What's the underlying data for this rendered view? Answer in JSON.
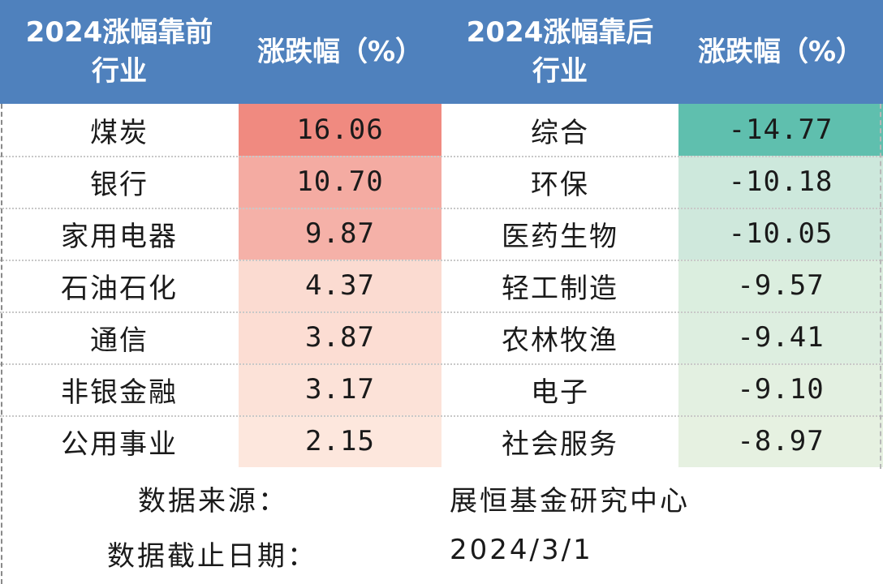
{
  "header": {
    "col1_line1": "2024涨幅靠前",
    "col1_line2": "行业",
    "col2": "涨跌幅（%）",
    "col3_line1": "2024涨幅靠后",
    "col3_line2": "行业",
    "col4": "涨跌幅（%）"
  },
  "rows": [
    {
      "top_industry": "煤炭",
      "top_change": "16.06",
      "bottom_industry": "综合",
      "bottom_change": "-14.77"
    },
    {
      "top_industry": "银行",
      "top_change": "10.70",
      "bottom_industry": "环保",
      "bottom_change": "-10.18"
    },
    {
      "top_industry": "家用电器",
      "top_change": "9.87",
      "bottom_industry": "医药生物",
      "bottom_change": "-10.05"
    },
    {
      "top_industry": "石油石化",
      "top_change": "4.37",
      "bottom_industry": "轻工制造",
      "bottom_change": "-9.57"
    },
    {
      "top_industry": "通信",
      "top_change": "3.87",
      "bottom_industry": "农林牧渔",
      "bottom_change": "-9.41"
    },
    {
      "top_industry": "非银金融",
      "top_change": "3.17",
      "bottom_industry": "电子",
      "bottom_change": "-9.10"
    },
    {
      "top_industry": "公用事业",
      "top_change": "2.15",
      "bottom_industry": "社会服务",
      "bottom_change": "-8.97"
    }
  ],
  "colors": {
    "header_bg": "#4f81bd",
    "positive_scale": [
      "#f08a80",
      "#f4aba2",
      "#f5b1a8",
      "#fbdbd1",
      "#fcddd3",
      "#fce2d8",
      "#fde7dd"
    ],
    "negative_scale": [
      "#5fbfae",
      "#cde8dc",
      "#cfe8dc",
      "#dbeedf",
      "#ddeee0",
      "#e3f0e1",
      "#e6f1e1"
    ]
  },
  "footer": {
    "source_label": "数据来源：",
    "source_value": "展恒基金研究中心",
    "date_label": "数据截止日期：",
    "date_value": "2024/3/1"
  }
}
